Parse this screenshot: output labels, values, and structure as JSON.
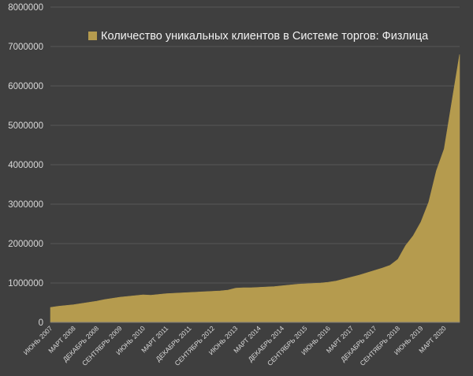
{
  "chart_data": {
    "type": "area",
    "title": "",
    "xlabel": "",
    "ylabel": "",
    "ylim": [
      0,
      8000000
    ],
    "yticks": [
      0,
      1000000,
      2000000,
      3000000,
      4000000,
      5000000,
      6000000,
      7000000,
      8000000
    ],
    "ytick_labels": [
      "0",
      "1000000",
      "2000000",
      "3000000",
      "4000000",
      "5000000",
      "6000000",
      "7000000",
      "8000000"
    ],
    "x_range": [
      "2007-06",
      "2020-09"
    ],
    "xtick_labels": [
      {
        "label": "ИЮНЬ 2007",
        "month": "2007-06"
      },
      {
        "label": "МАРТ 2008",
        "month": "2008-03"
      },
      {
        "label": "ДЕКАБРЬ 2008",
        "month": "2008-12"
      },
      {
        "label": "СЕНТЯБРЬ 2009",
        "month": "2009-09"
      },
      {
        "label": "ИЮНЬ 2010",
        "month": "2010-06"
      },
      {
        "label": "МАРТ 2011",
        "month": "2011-03"
      },
      {
        "label": "ДЕКАБРЬ 2011",
        "month": "2011-12"
      },
      {
        "label": "СЕНТЯБРЬ 2012",
        "month": "2012-09"
      },
      {
        "label": "ИЮНЬ 2013",
        "month": "2013-06"
      },
      {
        "label": "МАРТ 2014",
        "month": "2014-03"
      },
      {
        "label": "ДЕКАБРЬ 2014",
        "month": "2014-12"
      },
      {
        "label": "СЕНТЯБРЬ 2015",
        "month": "2015-09"
      },
      {
        "label": "ИЮНЬ 2016",
        "month": "2016-06"
      },
      {
        "label": "МАРТ 2017",
        "month": "2017-03"
      },
      {
        "label": "ДЕКАБРЬ 2017",
        "month": "2017-12"
      },
      {
        "label": "СЕНТЯБРЬ 2018",
        "month": "2018-09"
      },
      {
        "label": "ИЮНЬ 2019",
        "month": "2019-06"
      },
      {
        "label": "МАРТ 2020",
        "month": "2020-03"
      }
    ],
    "grid": true,
    "legend_position": "top-center",
    "series": [
      {
        "name": "Количество уникальных клиентов в Системе торгов: Физлица",
        "color": "#b59b4e",
        "points": [
          [
            "2007-06",
            380000
          ],
          [
            "2007-09",
            410000
          ],
          [
            "2007-12",
            430000
          ],
          [
            "2008-03",
            450000
          ],
          [
            "2008-06",
            480000
          ],
          [
            "2008-09",
            510000
          ],
          [
            "2008-12",
            540000
          ],
          [
            "2009-03",
            580000
          ],
          [
            "2009-06",
            610000
          ],
          [
            "2009-09",
            640000
          ],
          [
            "2009-12",
            660000
          ],
          [
            "2010-03",
            680000
          ],
          [
            "2010-06",
            700000
          ],
          [
            "2010-09",
            690000
          ],
          [
            "2010-12",
            710000
          ],
          [
            "2011-03",
            730000
          ],
          [
            "2011-06",
            740000
          ],
          [
            "2011-09",
            750000
          ],
          [
            "2011-12",
            760000
          ],
          [
            "2012-03",
            770000
          ],
          [
            "2012-06",
            780000
          ],
          [
            "2012-09",
            790000
          ],
          [
            "2012-12",
            800000
          ],
          [
            "2013-03",
            820000
          ],
          [
            "2013-06",
            870000
          ],
          [
            "2013-09",
            880000
          ],
          [
            "2013-12",
            880000
          ],
          [
            "2014-03",
            890000
          ],
          [
            "2014-06",
            900000
          ],
          [
            "2014-09",
            910000
          ],
          [
            "2014-12",
            930000
          ],
          [
            "2015-03",
            950000
          ],
          [
            "2015-06",
            970000
          ],
          [
            "2015-09",
            980000
          ],
          [
            "2015-12",
            990000
          ],
          [
            "2016-03",
            1000000
          ],
          [
            "2016-06",
            1020000
          ],
          [
            "2016-09",
            1050000
          ],
          [
            "2016-12",
            1100000
          ],
          [
            "2017-03",
            1150000
          ],
          [
            "2017-06",
            1200000
          ],
          [
            "2017-09",
            1260000
          ],
          [
            "2017-12",
            1320000
          ],
          [
            "2018-03",
            1380000
          ],
          [
            "2018-06",
            1450000
          ],
          [
            "2018-09",
            1600000
          ],
          [
            "2018-12",
            1950000
          ],
          [
            "2019-03",
            2200000
          ],
          [
            "2019-06",
            2550000
          ],
          [
            "2019-09",
            3050000
          ],
          [
            "2019-12",
            3850000
          ],
          [
            "2020-03",
            4400000
          ],
          [
            "2020-06",
            5600000
          ],
          [
            "2020-09",
            6800000
          ]
        ]
      }
    ]
  }
}
